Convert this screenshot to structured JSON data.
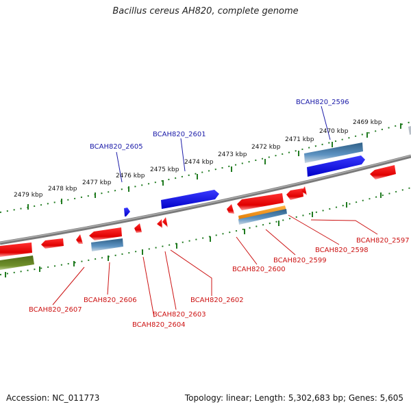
{
  "title": "Bacillus cereus AH820, complete genome",
  "footer": {
    "accession": "Accession: NC_011773",
    "topology": "Topology: linear; Length: 5,302,683 bp; Genes: 5,605"
  },
  "scale_labels": [
    "2479 kbp",
    "2478 kbp",
    "2477 kbp",
    "2476 kbp",
    "2475 kbp",
    "2474 kbp",
    "2473 kbp",
    "2472 kbp",
    "2471 kbp",
    "2470 kbp",
    "2469 kbp"
  ],
  "gene_labels_top": [
    "BCAH820_2605",
    "BCAH820_2601",
    "BCAH820_2596"
  ],
  "gene_labels_bottom": [
    "BCAH820_2607",
    "BCAH820_2606",
    "BCAH820_2604",
    "BCAH820_2603",
    "BCAH820_2602",
    "BCAH820_2600",
    "BCAH820_2599",
    "BCAH820_2598",
    "BCAH820_2597"
  ],
  "colors": {
    "forward_cds": "#0000dd",
    "reverse_cds": "#ee0000",
    "rna": "#4a82b4",
    "orange_feature": "#f39200",
    "olive_feature": "#5a7a1e",
    "backbone": "#777777",
    "scale_ticks": "#1f7a1f",
    "top_label": "#1a1aa8",
    "bottom_label": "#cc1111"
  }
}
